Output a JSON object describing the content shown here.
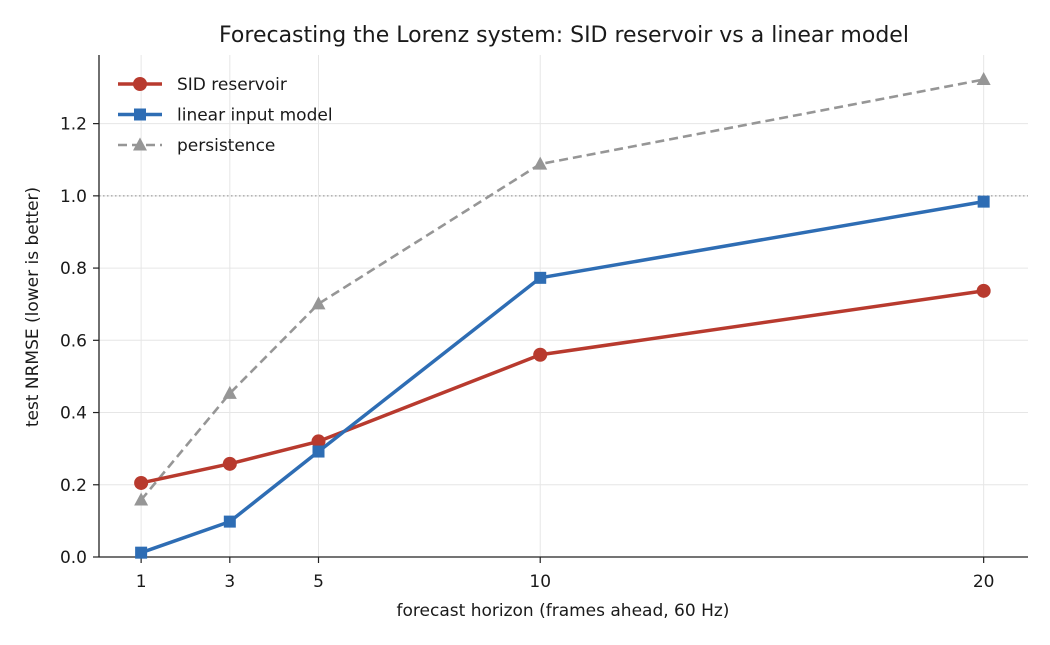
{
  "chart_data": {
    "type": "line",
    "title": "Forecasting the Lorenz system: SID reservoir vs a linear model",
    "xlabel": "forecast horizon (frames ahead, 60 Hz)",
    "ylabel": "test NRMSE (lower is better)",
    "x": [
      1,
      3,
      5,
      10,
      20
    ],
    "x_ticks": [
      "1",
      "3",
      "5",
      "10",
      "20"
    ],
    "y_ticks": [
      "0.0",
      "0.2",
      "0.4",
      "0.6",
      "0.8",
      "1.0",
      "1.2"
    ],
    "xlim": [
      0.05,
      21.0
    ],
    "ylim": [
      0,
      1.39
    ],
    "grid": true,
    "reference_line": {
      "y": 1.0,
      "style": "dotted",
      "color": "#8a8a8a"
    },
    "legend": {
      "position": "top-left"
    },
    "series": [
      {
        "name": "SID reservoir",
        "values": [
          0.205,
          0.258,
          0.32,
          0.56,
          0.737
        ],
        "color": "#b83a2e",
        "marker": "circle",
        "dash": "solid"
      },
      {
        "name": "linear input model",
        "values": [
          0.012,
          0.098,
          0.292,
          0.773,
          0.984
        ],
        "color": "#2e6db4",
        "marker": "square",
        "dash": "solid"
      },
      {
        "name": "persistence",
        "values": [
          0.158,
          0.453,
          0.701,
          1.088,
          1.322
        ],
        "color": "#969696",
        "marker": "triangle",
        "dash": "dashed"
      }
    ]
  }
}
